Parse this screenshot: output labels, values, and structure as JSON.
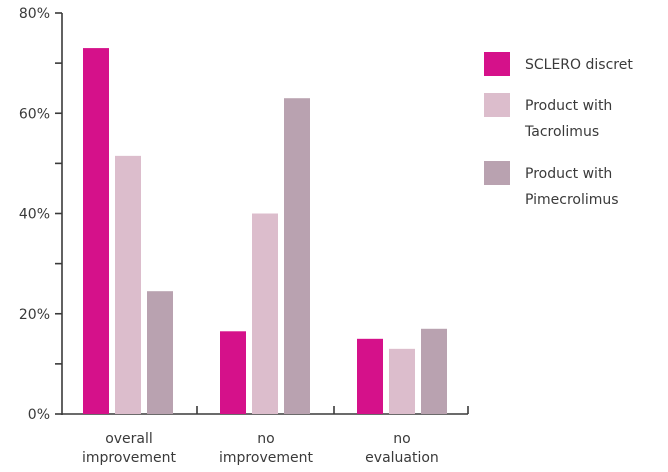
{
  "chart_data": {
    "type": "bar",
    "categories": [
      [
        "overall",
        "improvement"
      ],
      [
        "no",
        "improvement"
      ],
      [
        "no",
        "evaluation"
      ]
    ],
    "series": [
      {
        "name": "SCLERO discret",
        "color": "#d5118a",
        "values": [
          73,
          16.5,
          15
        ]
      },
      {
        "name": [
          "Product with",
          "Tacrolimus"
        ],
        "color": "#dcbdcc",
        "values": [
          51.5,
          40,
          13
        ]
      },
      {
        "name": [
          "Product with",
          "Pimecrolimus"
        ],
        "color": "#b9a2b0",
        "values": [
          24.5,
          63,
          17
        ]
      }
    ],
    "yticks": [
      "0%",
      "20%",
      "40%",
      "60%",
      "80%"
    ],
    "ylim": [
      0,
      80
    ],
    "legend_position": "right",
    "grid": false
  }
}
